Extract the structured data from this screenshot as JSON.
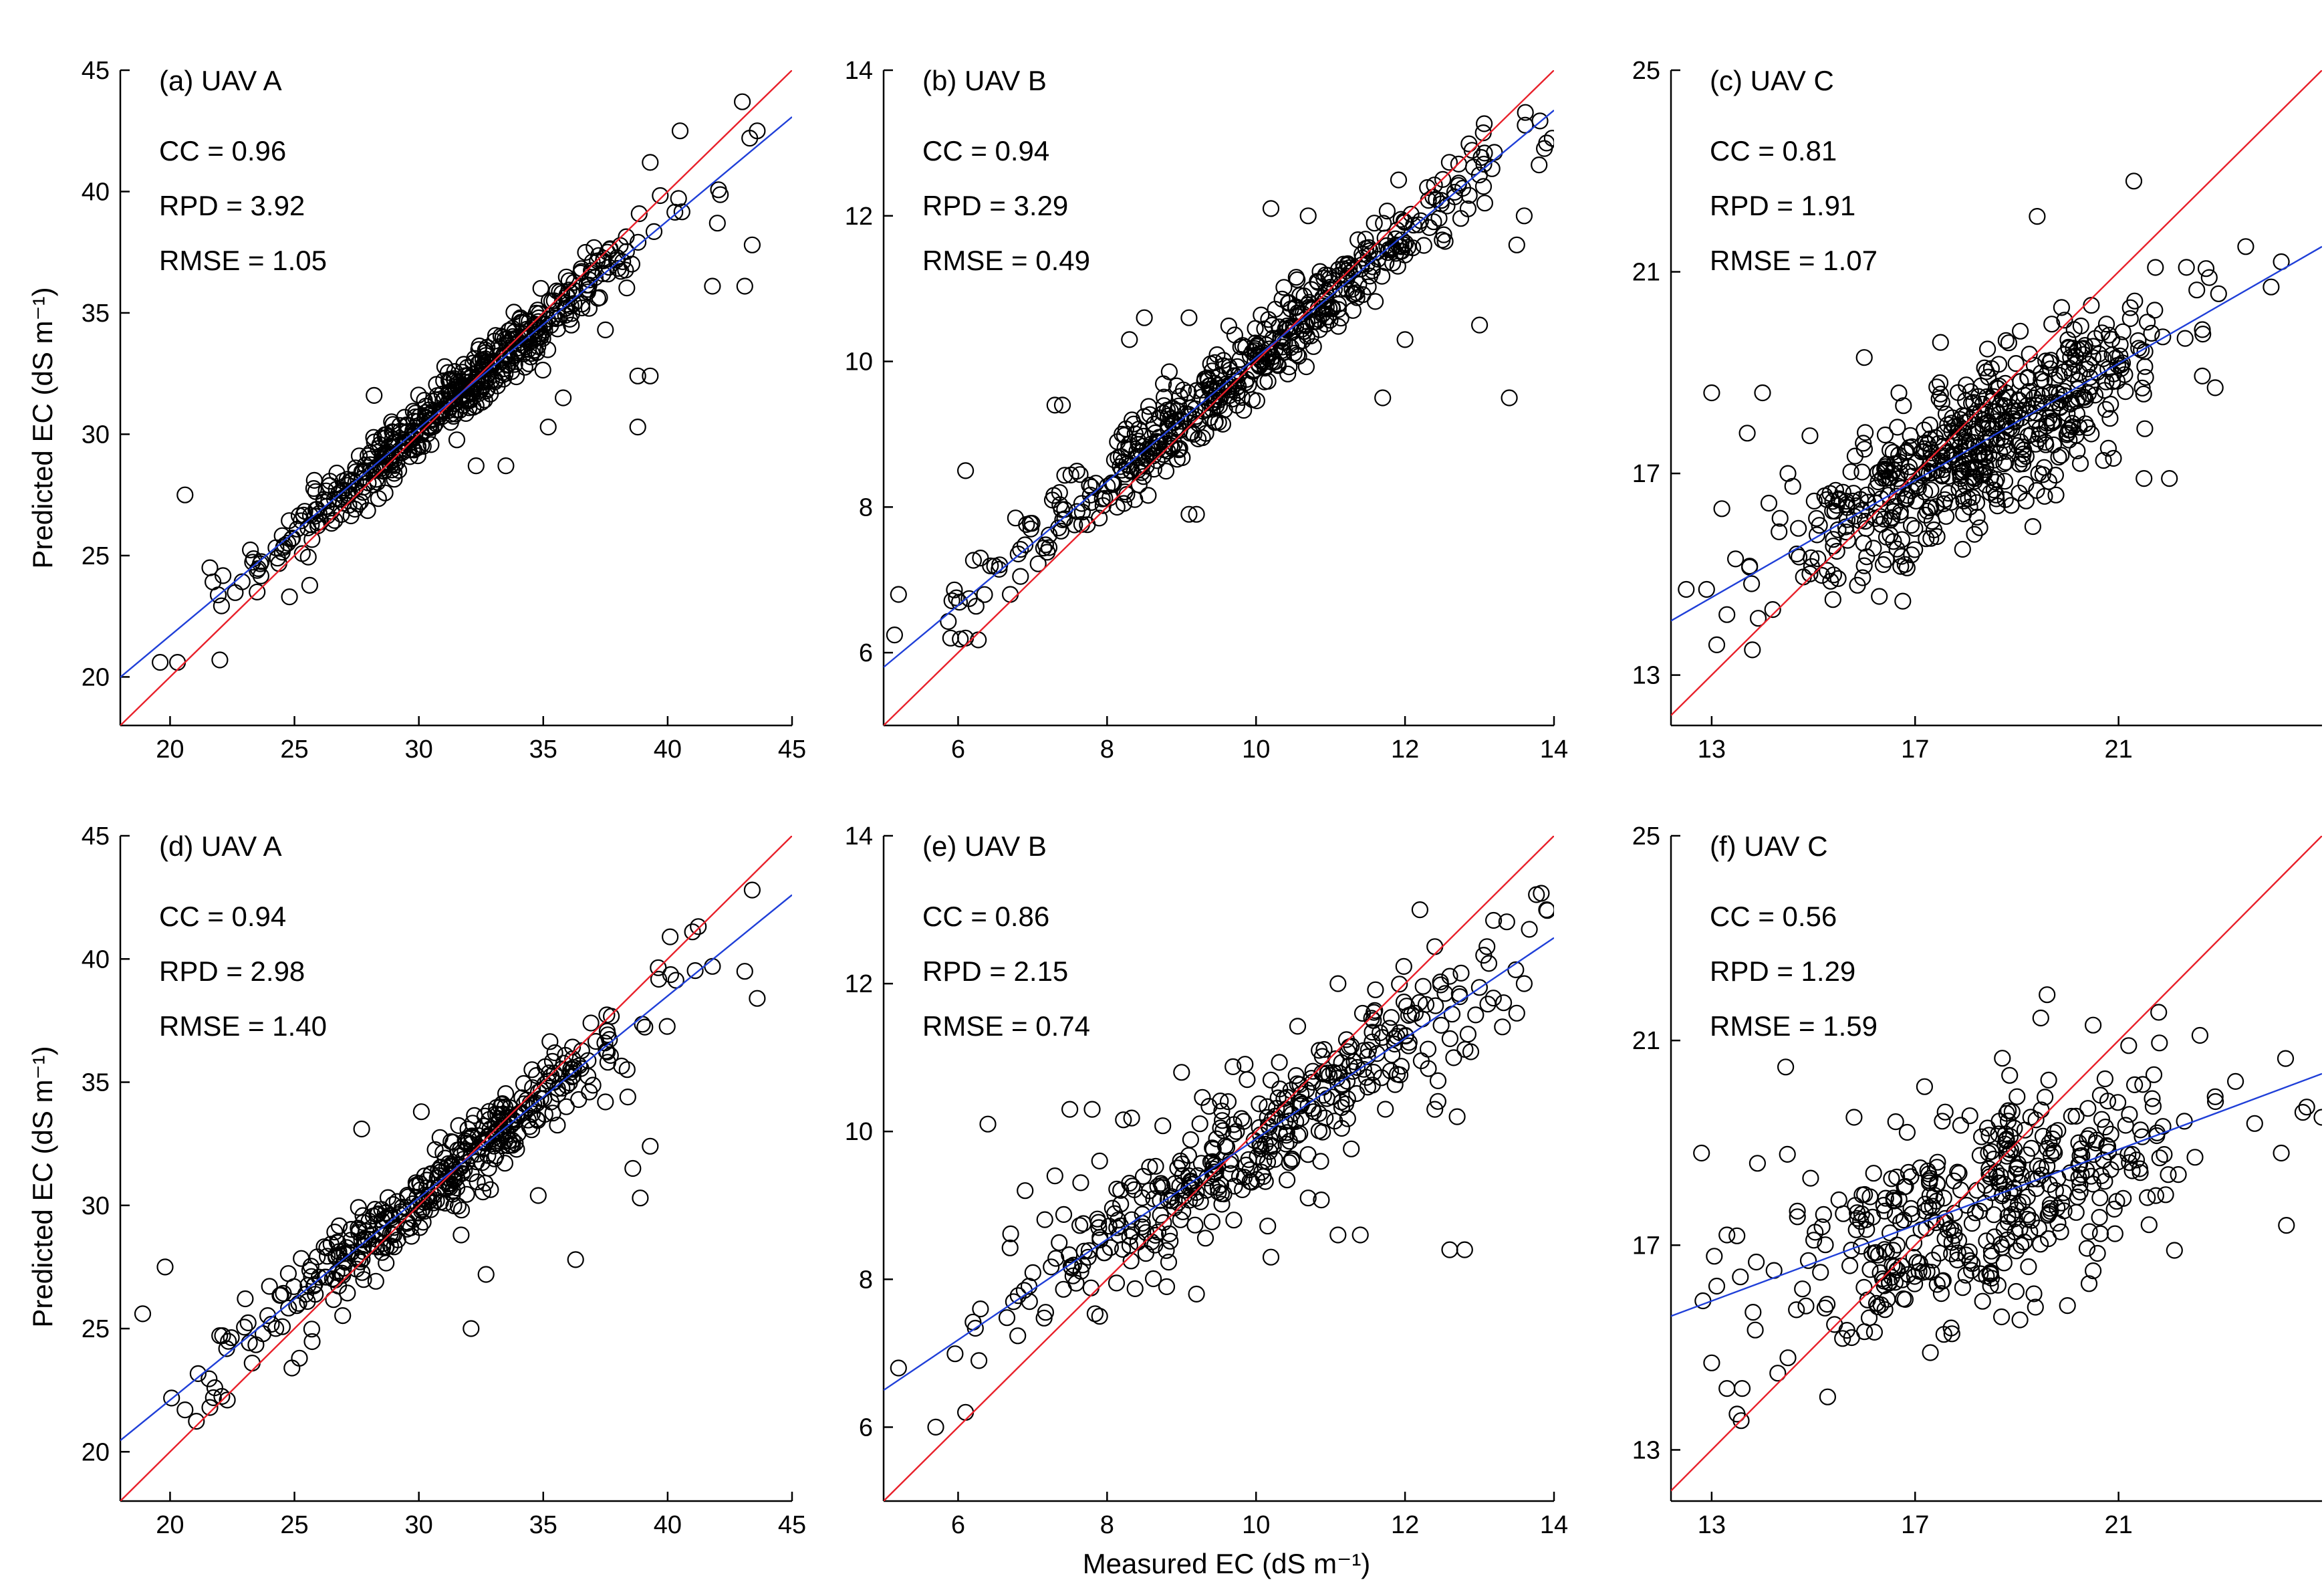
{
  "figure": {
    "xlabel": "Measured EC (dS m⁻¹)",
    "ylabel": "Predicted EC (dS m⁻¹)",
    "colors": {
      "one_to_one": "#e8202a",
      "fit": "#1f3fd8",
      "points": "#000000"
    }
  },
  "chart_data": [
    {
      "type": "scatter",
      "id": "a",
      "title": "(a) UAV A",
      "stats": [
        {
          "name": "CC",
          "value": "0.96"
        },
        {
          "name": "RPD",
          "value": "3.92"
        },
        {
          "name": "RMSE",
          "value": "1.05"
        }
      ],
      "xlim": [
        18,
        45
      ],
      "ylim": [
        18,
        45
      ],
      "xticks": [
        "20",
        "25",
        "30",
        "35",
        "40",
        "45"
      ],
      "yticks": [
        "20",
        "25",
        "30",
        "35",
        "40",
        "45"
      ],
      "one_to_one": true,
      "fit": {
        "slope": 0.855,
        "intercept": 4.6
      },
      "point_cloud": {
        "count": 520,
        "x_mean": 31.5,
        "x_sd": 3.8,
        "residual_sd": 0.65
      },
      "points": [
        [
          20.6,
          27.5
        ],
        [
          22,
          20.7
        ],
        [
          25.8,
          28.1
        ],
        [
          28.2,
          31.6
        ],
        [
          33.5,
          28.7
        ],
        [
          35.8,
          31.5
        ],
        [
          38.8,
          30.3
        ],
        [
          38.8,
          32.4
        ],
        [
          39.3,
          32.4
        ],
        [
          41.8,
          36.1
        ],
        [
          43.1,
          36.1
        ],
        [
          43.4,
          37.8
        ],
        [
          42,
          38.7
        ],
        [
          40.5,
          42.5
        ],
        [
          43,
          43.7
        ],
        [
          43.3,
          42.2
        ],
        [
          43.6,
          42.5
        ],
        [
          39.3,
          41.2
        ],
        [
          35.2,
          30.3
        ],
        [
          32.3,
          28.7
        ],
        [
          19.6,
          20.6
        ],
        [
          20.3,
          20.6
        ],
        [
          21.6,
          24.5
        ],
        [
          23.5,
          23.5
        ],
        [
          24.8,
          23.3
        ],
        [
          37.5,
          34.3
        ]
      ]
    },
    {
      "type": "scatter",
      "id": "b",
      "title": "(b) UAV B",
      "stats": [
        {
          "name": "CC",
          "value": "0.94"
        },
        {
          "name": "RPD",
          "value": "3.29"
        },
        {
          "name": "RMSE",
          "value": "0.49"
        }
      ],
      "xlim": [
        5,
        14
      ],
      "ylim": [
        5,
        14
      ],
      "xticks": [
        "6",
        "8",
        "10",
        "12",
        "14"
      ],
      "yticks": [
        "6",
        "8",
        "10",
        "12",
        "14"
      ],
      "one_to_one": true,
      "fit": {
        "slope": 0.85,
        "intercept": 1.55
      },
      "point_cloud": {
        "count": 520,
        "x_mean": 10.0,
        "x_sd": 1.75,
        "residual_sd": 0.28
      },
      "points": [
        [
          5.2,
          6.8
        ],
        [
          6.1,
          8.5
        ],
        [
          6.1,
          6.2
        ],
        [
          5.9,
          6.2
        ],
        [
          7.3,
          9.4
        ],
        [
          7.4,
          9.4
        ],
        [
          9.2,
          7.9
        ],
        [
          9.1,
          7.9
        ],
        [
          9.2,
          9.6
        ],
        [
          10.2,
          12.1
        ],
        [
          10.7,
          12
        ],
        [
          11.7,
          9.5
        ],
        [
          13.4,
          9.5
        ],
        [
          13.0,
          10.5
        ],
        [
          13.6,
          12
        ],
        [
          13.9,
          13
        ],
        [
          13.8,
          12.7
        ],
        [
          12.9,
          12.9
        ],
        [
          13.5,
          11.6
        ],
        [
          8.5,
          10.6
        ],
        [
          8.3,
          10.3
        ],
        [
          9.1,
          10.6
        ],
        [
          6.3,
          7.3
        ],
        [
          6.7,
          6.8
        ],
        [
          12.0,
          10.3
        ]
      ]
    },
    {
      "type": "scatter",
      "id": "c",
      "title": "(c) UAV C",
      "stats": [
        {
          "name": "CC",
          "value": "0.81"
        },
        {
          "name": "RPD",
          "value": "1.91"
        },
        {
          "name": "RMSE",
          "value": "1.07"
        }
      ],
      "xlim": [
        12.2,
        25
      ],
      "ylim": [
        12,
        25
      ],
      "xticks": [
        "13",
        "17",
        "21"
      ],
      "yticks": [
        "13",
        "17",
        "21",
        "25"
      ],
      "one_to_one": true,
      "fit": {
        "slope": 0.58,
        "intercept": 7.0
      },
      "point_cloud": {
        "count": 560,
        "x_mean": 18.2,
        "x_sd": 1.85,
        "residual_sd": 0.8
      },
      "points": [
        [
          13,
          18.6
        ],
        [
          13.2,
          16.3
        ],
        [
          12.9,
          14.7
        ],
        [
          13.1,
          13.6
        ],
        [
          13.8,
          13.5
        ],
        [
          13.7,
          17.8
        ],
        [
          14.0,
          18.6
        ],
        [
          14.5,
          17.0
        ],
        [
          16.0,
          19.3
        ],
        [
          17.5,
          19.6
        ],
        [
          24.2,
          21.2
        ],
        [
          24.0,
          20.7
        ],
        [
          23.5,
          21.5
        ],
        [
          22.9,
          18.7
        ],
        [
          22.0,
          16.9
        ],
        [
          21.5,
          16.9
        ],
        [
          20.9,
          17.3
        ],
        [
          20.0,
          17.8
        ],
        [
          21.3,
          22.8
        ],
        [
          19.4,
          22.1
        ],
        [
          12.5,
          14.7
        ],
        [
          13.3,
          14.2
        ],
        [
          14.2,
          14.3
        ],
        [
          20.8,
          17.5
        ]
      ]
    },
    {
      "type": "scatter",
      "id": "d",
      "title": "(d) UAV A",
      "stats": [
        {
          "name": "CC",
          "value": "0.94"
        },
        {
          "name": "RPD",
          "value": "2.98"
        },
        {
          "name": "RMSE",
          "value": "1.40"
        }
      ],
      "xlim": [
        18,
        45
      ],
      "ylim": [
        18,
        45
      ],
      "xticks": [
        "20",
        "25",
        "30",
        "35",
        "40",
        "45"
      ],
      "yticks": [
        "20",
        "25",
        "30",
        "35",
        "40",
        "45"
      ],
      "one_to_one": true,
      "fit": {
        "slope": 0.82,
        "intercept": 5.7
      },
      "point_cloud": {
        "count": 400,
        "x_mean": 31.0,
        "x_sd": 3.9,
        "residual_sd": 0.75
      },
      "points": [
        [
          18.9,
          25.6
        ],
        [
          19.8,
          27.5
        ],
        [
          20.6,
          21.7
        ],
        [
          21.6,
          21.8
        ],
        [
          22.3,
          22.1
        ],
        [
          21.8,
          22.6
        ],
        [
          23.3,
          23.6
        ],
        [
          24.9,
          23.4
        ],
        [
          25.2,
          23.8
        ],
        [
          27.7,
          33.1
        ],
        [
          30.1,
          33.8
        ],
        [
          32.1,
          25.0
        ],
        [
          36.3,
          27.8
        ],
        [
          34.8,
          30.4
        ],
        [
          38.9,
          30.3
        ],
        [
          38.6,
          31.5
        ],
        [
          39.3,
          32.4
        ],
        [
          40.1,
          40.9
        ],
        [
          41.0,
          41.1
        ],
        [
          43.4,
          42.8
        ],
        [
          43.6,
          38.4
        ],
        [
          43.1,
          39.5
        ],
        [
          41.8,
          39.7
        ],
        [
          37.5,
          34.2
        ],
        [
          38.4,
          34.4
        ],
        [
          31.7,
          28.8
        ],
        [
          32.7,
          27.2
        ]
      ]
    },
    {
      "type": "scatter",
      "id": "e",
      "title": "(e) UAV B",
      "stats": [
        {
          "name": "CC",
          "value": "0.86"
        },
        {
          "name": "RPD",
          "value": "2.15"
        },
        {
          "name": "RMSE",
          "value": "0.74"
        }
      ],
      "xlim": [
        5,
        14
      ],
      "ylim": [
        5,
        14
      ],
      "xticks": [
        "6",
        "8",
        "10",
        "12",
        "14"
      ],
      "yticks": [
        "6",
        "8",
        "10",
        "12",
        "14"
      ],
      "one_to_one": true,
      "fit": {
        "slope": 0.68,
        "intercept": 3.1
      },
      "point_cloud": {
        "count": 380,
        "x_mean": 10.0,
        "x_sd": 1.8,
        "residual_sd": 0.42
      },
      "points": [
        [
          5.2,
          6.8
        ],
        [
          5.7,
          6.0
        ],
        [
          6.1,
          6.2
        ],
        [
          6.3,
          7.6
        ],
        [
          6.4,
          10.1
        ],
        [
          6.9,
          9.2
        ],
        [
          7.3,
          9.4
        ],
        [
          7.5,
          10.3
        ],
        [
          7.9,
          7.5
        ],
        [
          9.2,
          7.8
        ],
        [
          8.8,
          7.9
        ],
        [
          10.2,
          8.3
        ],
        [
          10.7,
          9.1
        ],
        [
          11.1,
          8.6
        ],
        [
          11.4,
          8.6
        ],
        [
          12.6,
          8.4
        ],
        [
          12.8,
          8.4
        ],
        [
          11.5,
          10.6
        ],
        [
          12.2,
          13.0
        ],
        [
          12.4,
          12.5
        ],
        [
          13.1,
          12.5
        ],
        [
          13.9,
          13.0
        ],
        [
          13.6,
          12.0
        ],
        [
          13.5,
          11.6
        ],
        [
          12.4,
          10.3
        ],
        [
          12.7,
          10.2
        ],
        [
          11.1,
          12.0
        ],
        [
          12.6,
          12.1
        ],
        [
          7.8,
          10.3
        ],
        [
          8.3,
          9.3
        ],
        [
          7.9,
          9.6
        ],
        [
          9.0,
          10.8
        ]
      ]
    },
    {
      "type": "scatter",
      "id": "f",
      "title": "(f) UAV C",
      "stats": [
        {
          "name": "CC",
          "value": "0.56"
        },
        {
          "name": "RPD",
          "value": "1.29"
        },
        {
          "name": "RMSE",
          "value": "1.59"
        }
      ],
      "xlim": [
        12.2,
        25
      ],
      "ylim": [
        12,
        25
      ],
      "xticks": [
        "13",
        "17",
        "21"
      ],
      "yticks": [
        "13",
        "17",
        "21",
        "25"
      ],
      "one_to_one": true,
      "fit": {
        "slope": 0.37,
        "intercept": 11.1
      },
      "point_cloud": {
        "count": 400,
        "x_mean": 18.3,
        "x_sd": 2.0,
        "residual_sd": 1.0
      },
      "points": [
        [
          12.8,
          18.8
        ],
        [
          13.1,
          16.2
        ],
        [
          13.0,
          14.7
        ],
        [
          13.3,
          14.2
        ],
        [
          13.5,
          13.7
        ],
        [
          13.6,
          14.2
        ],
        [
          14.3,
          14.5
        ],
        [
          14.5,
          14.8
        ],
        [
          13.3,
          17.2
        ],
        [
          13.9,
          18.6
        ],
        [
          15.8,
          19.5
        ],
        [
          16.2,
          15.3
        ],
        [
          17.3,
          14.9
        ],
        [
          20.5,
          21.3
        ],
        [
          21.2,
          20.9
        ],
        [
          22.1,
          16.9
        ],
        [
          21.6,
          17.4
        ],
        [
          20.5,
          16.5
        ],
        [
          22.6,
          21.1
        ],
        [
          24.2,
          18.8
        ],
        [
          24.7,
          19.7
        ],
        [
          25.0,
          19.5
        ],
        [
          22.9,
          19.9
        ],
        [
          23.3,
          20.2
        ],
        [
          18.7,
          15.6
        ],
        [
          15.2,
          17.6
        ],
        [
          14.9,
          16.7
        ]
      ]
    }
  ]
}
